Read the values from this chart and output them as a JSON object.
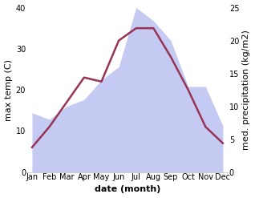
{
  "months": [
    "Jan",
    "Feb",
    "Mar",
    "Apr",
    "May",
    "Jun",
    "Jul",
    "Aug",
    "Sep",
    "Oct",
    "Nov",
    "Dec"
  ],
  "temperature": [
    6,
    11,
    17,
    23,
    22,
    32,
    35,
    35,
    28,
    20,
    11,
    7
  ],
  "precipitation": [
    9,
    8,
    10,
    11,
    14,
    16,
    25,
    23,
    20,
    13,
    13,
    7
  ],
  "temp_color": "#993355",
  "precip_fill_color": "#c5caf2",
  "temp_ylim": [
    0,
    40
  ],
  "precip_ylim": [
    0,
    25
  ],
  "xlabel": "date (month)",
  "ylabel_left": "max temp (C)",
  "ylabel_right": "med. precipitation (kg/m2)",
  "bg_color": "#ffffff",
  "tick_fontsize": 7,
  "label_fontsize": 8
}
